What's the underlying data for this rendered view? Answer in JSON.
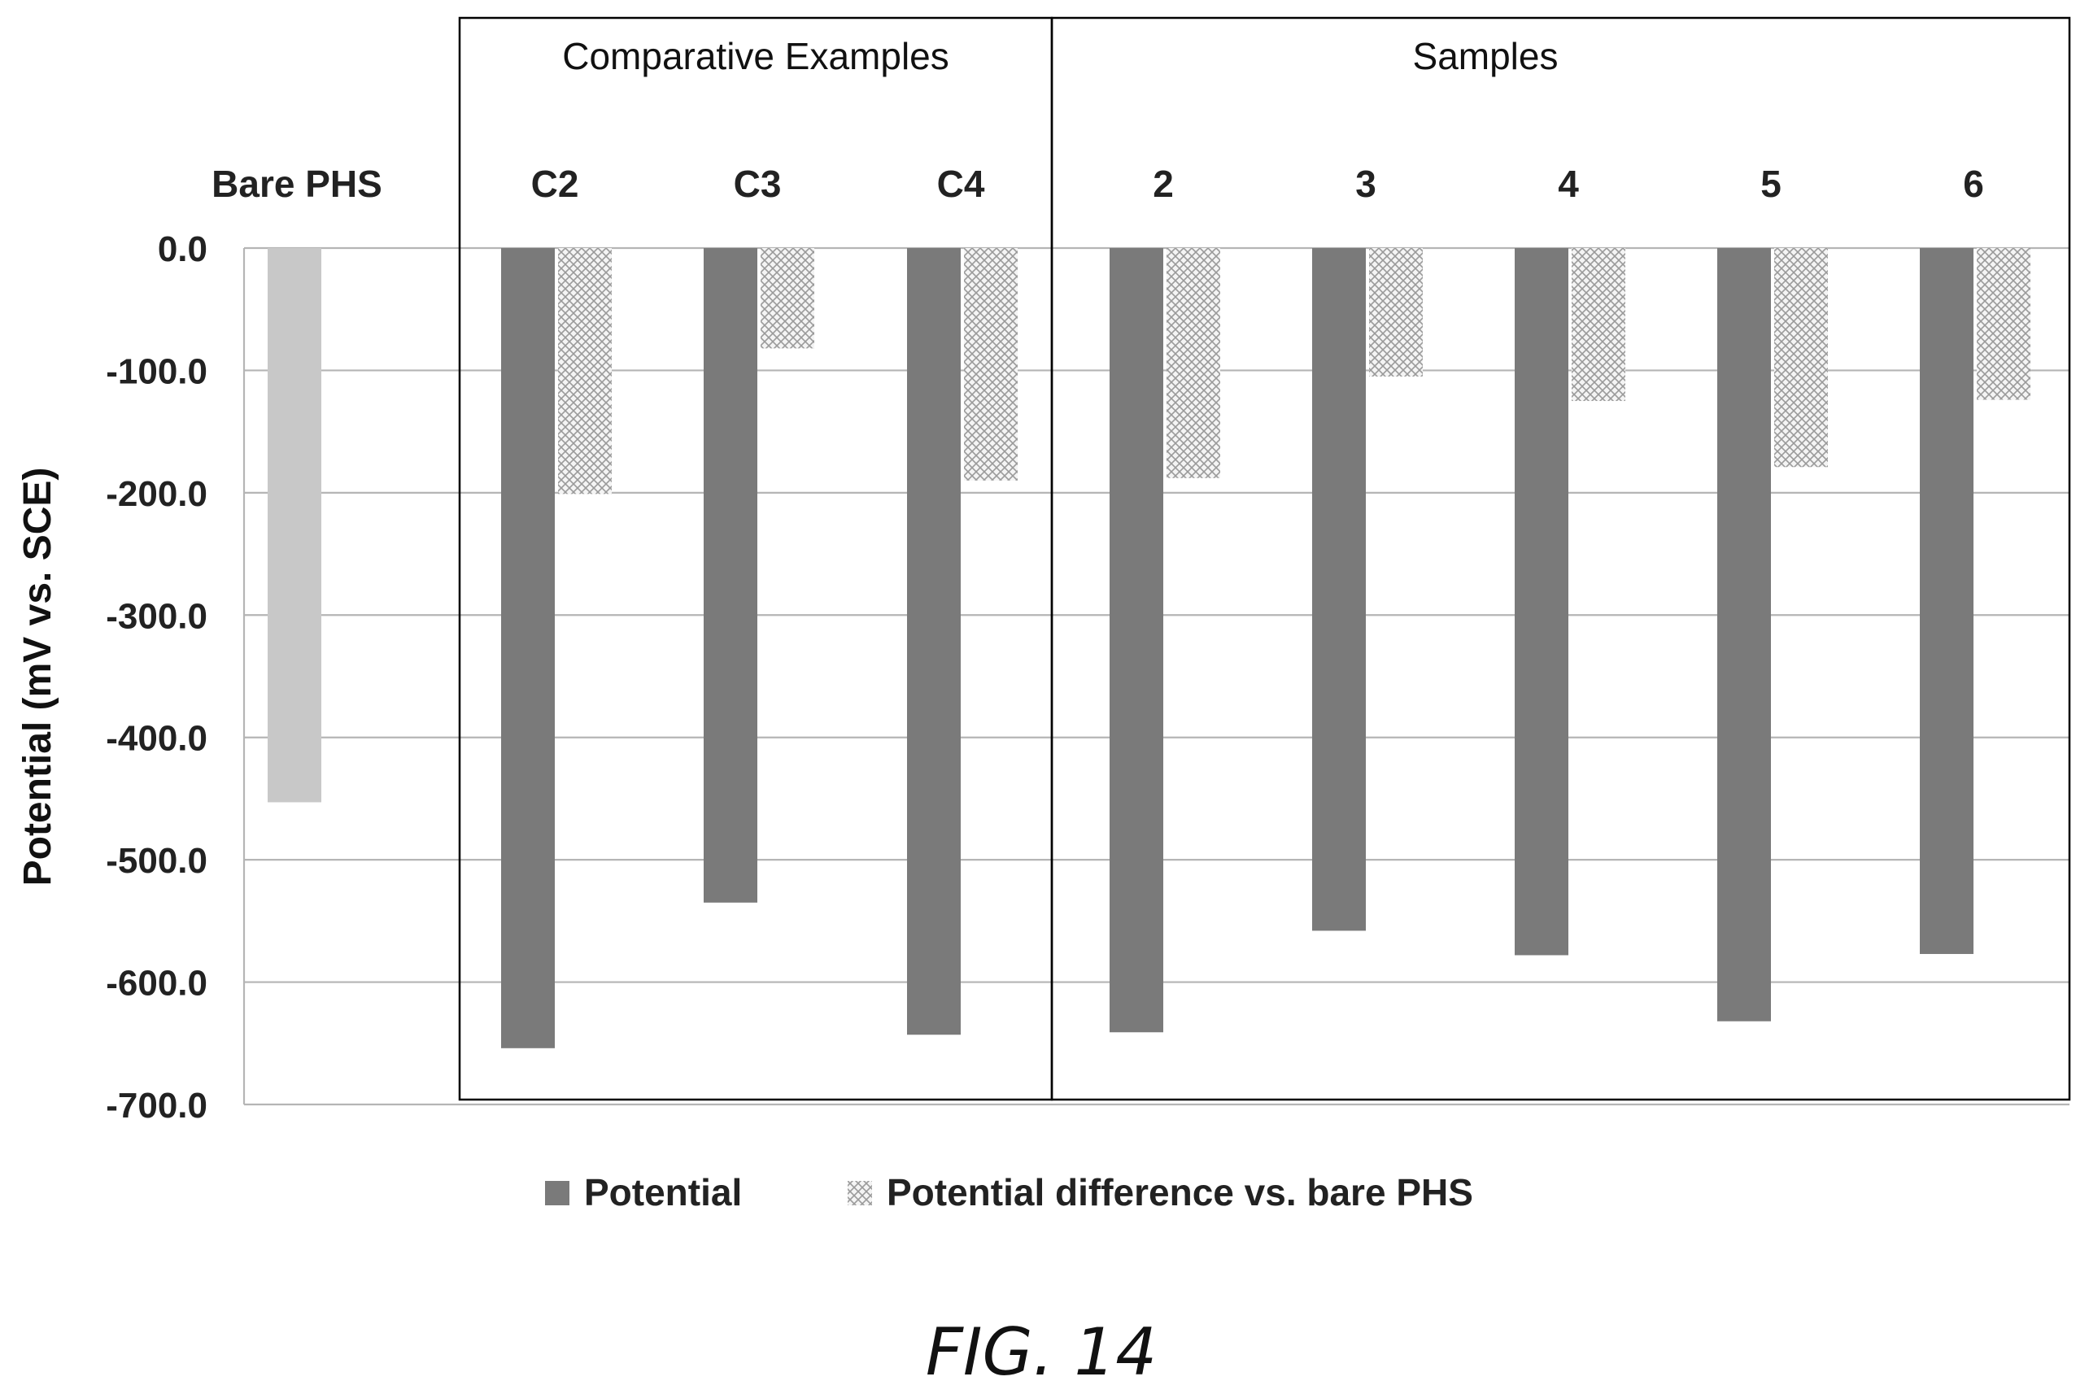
{
  "figure_label": "FIG. 14",
  "chart_data": {
    "type": "bar",
    "ylabel": "Potential (mV vs. SCE)",
    "ylim": [
      -700,
      0
    ],
    "yticks": [
      0,
      -100,
      -200,
      -300,
      -400,
      -500,
      -600,
      -700
    ],
    "ytick_labels": [
      "0.0",
      "-100.0",
      "-200.0",
      "-300.0",
      "-400.0",
      "-500.0",
      "-600.0",
      "-700.0"
    ],
    "grid": true,
    "categories": [
      "Bare PHS",
      "C2",
      "C3",
      "C4",
      "2",
      "3",
      "4",
      "5",
      "6"
    ],
    "groups": [
      {
        "label": "Comparative Examples",
        "categories": [
          "C2",
          "C3",
          "C4"
        ]
      },
      {
        "label": "Samples",
        "categories": [
          "2",
          "3",
          "4",
          "5",
          "6"
        ]
      }
    ],
    "series": [
      {
        "name": "Potential",
        "color": "#7a7a7a",
        "values": [
          -453,
          -654,
          -535,
          -643,
          -641,
          -558,
          -578,
          -632,
          -577
        ]
      },
      {
        "name": "Potential difference vs. bare PHS",
        "color": "#d0d0d0",
        "pattern": "crosshatch",
        "values": [
          null,
          -201,
          -82,
          -190,
          -188,
          -105,
          -125,
          -179,
          -124
        ]
      }
    ],
    "bare_bar_color": "#c8c8c8",
    "legend_position": "bottom-center"
  }
}
